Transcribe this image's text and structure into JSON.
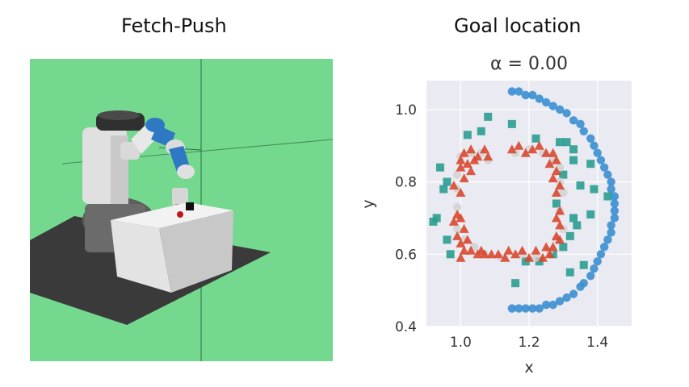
{
  "panels": {
    "left_title": "Fetch-Push",
    "right_title": "Goal location"
  },
  "scene": {
    "background_color": "#74d98e",
    "floor_color": "#3a3a3a",
    "table_color": "#e8e8e8",
    "robot_body_color": "#e6e6e6",
    "robot_joint_color": "#2f78c4"
  },
  "chart_data": {
    "type": "scatter",
    "title": "α = 0.00",
    "xlabel": "x",
    "ylabel": "y",
    "xlim": [
      0.9,
      1.5
    ],
    "ylim": [
      0.4,
      1.08
    ],
    "xticks": [
      "1.0",
      "1.2",
      "1.4"
    ],
    "xtick_values": [
      1.0,
      1.2,
      1.4
    ],
    "yticks": [
      "0.4",
      "0.6",
      "0.8",
      "1.0"
    ],
    "ytick_values": [
      0.4,
      0.6,
      0.8,
      1.0
    ],
    "grid": true,
    "background": "#eaeaf2",
    "series": [
      {
        "marker": "circle",
        "color": "#3b8fd0",
        "points": [
          [
            1.15,
            1.05
          ],
          [
            1.17,
            1.05
          ],
          [
            1.19,
            1.04
          ],
          [
            1.21,
            1.04
          ],
          [
            1.23,
            1.03
          ],
          [
            1.25,
            1.02
          ],
          [
            1.27,
            1.01
          ],
          [
            1.29,
            1.0
          ],
          [
            1.31,
            0.99
          ],
          [
            1.33,
            0.97
          ],
          [
            1.35,
            0.96
          ],
          [
            1.36,
            0.94
          ],
          [
            1.38,
            0.92
          ],
          [
            1.39,
            0.9
          ],
          [
            1.4,
            0.88
          ],
          [
            1.41,
            0.86
          ],
          [
            1.42,
            0.84
          ],
          [
            1.43,
            0.82
          ],
          [
            1.44,
            0.8
          ],
          [
            1.44,
            0.78
          ],
          [
            1.45,
            0.76
          ],
          [
            1.45,
            0.74
          ],
          [
            1.45,
            0.72
          ],
          [
            1.45,
            0.7
          ],
          [
            1.44,
            0.68
          ],
          [
            1.44,
            0.66
          ],
          [
            1.43,
            0.64
          ],
          [
            1.42,
            0.62
          ],
          [
            1.41,
            0.6
          ],
          [
            1.4,
            0.58
          ],
          [
            1.39,
            0.56
          ],
          [
            1.38,
            0.54
          ],
          [
            1.36,
            0.52
          ],
          [
            1.35,
            0.51
          ],
          [
            1.33,
            0.49
          ],
          [
            1.31,
            0.48
          ],
          [
            1.29,
            0.47
          ],
          [
            1.27,
            0.46
          ],
          [
            1.25,
            0.46
          ],
          [
            1.23,
            0.45
          ],
          [
            1.21,
            0.45
          ],
          [
            1.19,
            0.45
          ],
          [
            1.17,
            0.45
          ],
          [
            1.15,
            0.45
          ]
        ]
      },
      {
        "marker": "square",
        "color": "#2a9d8f",
        "points": [
          [
            1.08,
            0.98
          ],
          [
            1.15,
            0.96
          ],
          [
            1.06,
            0.94
          ],
          [
            1.02,
            0.93
          ],
          [
            1.22,
            0.92
          ],
          [
            1.29,
            0.91
          ],
          [
            1.31,
            0.91
          ],
          [
            1.33,
            0.89
          ],
          [
            0.94,
            0.84
          ],
          [
            1.33,
            0.86
          ],
          [
            1.38,
            0.85
          ],
          [
            1.3,
            0.82
          ],
          [
            0.96,
            0.8
          ],
          [
            0.95,
            0.78
          ],
          [
            1.35,
            0.79
          ],
          [
            1.39,
            0.78
          ],
          [
            1.43,
            0.76
          ],
          [
            1.28,
            0.74
          ],
          [
            0.93,
            0.7
          ],
          [
            0.92,
            0.69
          ],
          [
            1.33,
            0.7
          ],
          [
            1.38,
            0.71
          ],
          [
            1.34,
            0.68
          ],
          [
            1.32,
            0.65
          ],
          [
            0.96,
            0.64
          ],
          [
            0.97,
            0.6
          ],
          [
            1.3,
            0.62
          ],
          [
            1.27,
            0.6
          ],
          [
            1.19,
            0.58
          ],
          [
            1.23,
            0.58
          ],
          [
            1.36,
            0.57
          ],
          [
            1.32,
            0.55
          ],
          [
            1.16,
            0.52
          ]
        ]
      },
      {
        "marker": "circle",
        "color": "#cfcfcf",
        "points": [
          [
            1.0,
            0.87
          ],
          [
            1.03,
            0.88
          ],
          [
            1.06,
            0.88
          ],
          [
            1.08,
            0.86
          ],
          [
            1.16,
            0.88
          ],
          [
            1.2,
            0.89
          ],
          [
            1.24,
            0.88
          ],
          [
            1.27,
            0.86
          ],
          [
            1.29,
            0.84
          ],
          [
            1.29,
            0.8
          ],
          [
            1.3,
            0.77
          ],
          [
            1.29,
            0.72
          ],
          [
            1.3,
            0.67
          ],
          [
            1.28,
            0.64
          ],
          [
            1.26,
            0.61
          ],
          [
            1.22,
            0.59
          ],
          [
            1.18,
            0.6
          ],
          [
            1.12,
            0.59
          ],
          [
            1.07,
            0.6
          ],
          [
            1.04,
            0.62
          ],
          [
            1.01,
            0.64
          ],
          [
            0.99,
            0.67
          ],
          [
            0.99,
            0.73
          ],
          [
            0.99,
            0.78
          ],
          [
            0.99,
            0.82
          ]
        ]
      },
      {
        "marker": "triangle",
        "color": "#d9482f",
        "points": [
          [
            1.01,
            0.88
          ],
          [
            1.03,
            0.89
          ],
          [
            1.05,
            0.87
          ],
          [
            1.07,
            0.89
          ],
          [
            1.08,
            0.87
          ],
          [
            1.0,
            0.86
          ],
          [
            1.02,
            0.85
          ],
          [
            1.04,
            0.86
          ],
          [
            1.0,
            0.84
          ],
          [
            1.03,
            0.83
          ],
          [
            1.01,
            0.81
          ],
          [
            0.98,
            0.79
          ],
          [
            1.0,
            0.77
          ],
          [
            0.99,
            0.71
          ],
          [
            0.98,
            0.69
          ],
          [
            1.0,
            0.7
          ],
          [
            1.01,
            0.67
          ],
          [
            0.99,
            0.65
          ],
          [
            1.0,
            0.63
          ],
          [
            1.02,
            0.64
          ],
          [
            1.01,
            0.61
          ],
          [
            1.03,
            0.61
          ],
          [
            1.05,
            0.6
          ],
          [
            1.07,
            0.6
          ],
          [
            1.06,
            0.61
          ],
          [
            1.09,
            0.6
          ],
          [
            1.0,
            0.59
          ],
          [
            1.15,
            0.89
          ],
          [
            1.17,
            0.9
          ],
          [
            1.19,
            0.88
          ],
          [
            1.21,
            0.89
          ],
          [
            1.23,
            0.9
          ],
          [
            1.25,
            0.88
          ],
          [
            1.27,
            0.88
          ],
          [
            1.28,
            0.86
          ],
          [
            1.26,
            0.85
          ],
          [
            1.28,
            0.83
          ],
          [
            1.27,
            0.81
          ],
          [
            1.29,
            0.79
          ],
          [
            1.28,
            0.77
          ],
          [
            1.29,
            0.72
          ],
          [
            1.28,
            0.7
          ],
          [
            1.29,
            0.68
          ],
          [
            1.28,
            0.65
          ],
          [
            1.29,
            0.64
          ],
          [
            1.27,
            0.62
          ],
          [
            1.26,
            0.6
          ],
          [
            1.25,
            0.62
          ],
          [
            1.24,
            0.59
          ],
          [
            1.22,
            0.61
          ],
          [
            1.2,
            0.59
          ],
          [
            1.18,
            0.61
          ],
          [
            1.16,
            0.6
          ],
          [
            1.14,
            0.61
          ],
          [
            1.13,
            0.59
          ],
          [
            1.11,
            0.6
          ]
        ]
      }
    ]
  }
}
